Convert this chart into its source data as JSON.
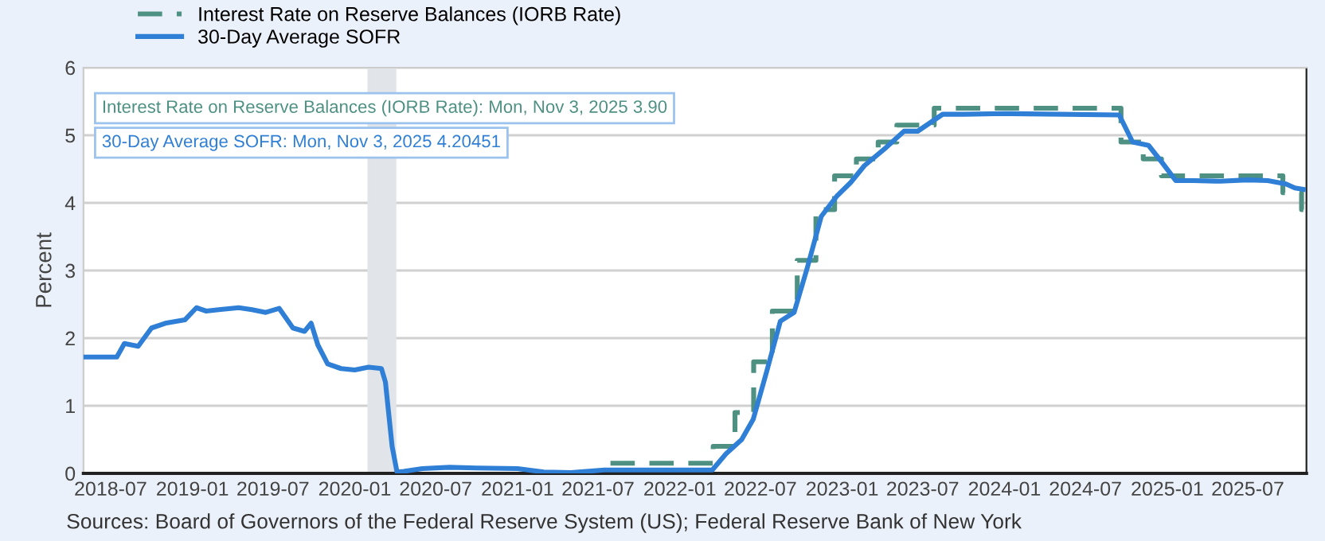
{
  "chart_data": {
    "type": "line",
    "ylabel": "Percent",
    "xlim": [
      "2018-05-01",
      "2025-11-10"
    ],
    "ylim": [
      0,
      6
    ],
    "yticks": [
      0,
      1,
      2,
      3,
      4,
      5,
      6
    ],
    "xticks": [
      "2018-07",
      "2019-01",
      "2019-07",
      "2020-01",
      "2020-07",
      "2021-01",
      "2021-07",
      "2022-01",
      "2022-07",
      "2023-01",
      "2023-07",
      "2024-01",
      "2024-07",
      "2025-01",
      "2025-07"
    ],
    "grid": "y",
    "legend": "top left",
    "bands": [
      {
        "axis": "x",
        "from": "2020-02",
        "to": "2020-04",
        "color": "#e1e4e8"
      }
    ],
    "series": [
      {
        "name": "Interest Rate on Reserve Balances (IORB Rate)",
        "type": "step",
        "line_style": "dashed",
        "color": "#4e9183",
        "x": [
          "2021-07-29",
          "2022-03-17",
          "2022-05-05",
          "2022-06-16",
          "2022-07-28",
          "2022-09-22",
          "2022-11-03",
          "2022-12-15",
          "2023-02-02",
          "2023-03-23",
          "2023-05-04",
          "2023-07-27",
          "2024-09-19",
          "2024-11-08",
          "2024-12-19",
          "2025-09-18",
          "2025-10-30",
          "2025-11-03"
        ],
        "values": [
          0.15,
          0.4,
          0.9,
          1.65,
          2.4,
          3.15,
          3.9,
          4.4,
          4.65,
          4.9,
          5.15,
          5.4,
          4.9,
          4.65,
          4.4,
          4.15,
          3.9,
          3.9
        ]
      },
      {
        "name": "30-Day Average SOFR",
        "line_style": "solid",
        "color": "#2f7fd6",
        "x": [
          "2018-05",
          "2018-07-15",
          "2018-08-01",
          "2018-09-01",
          "2018-10-01",
          "2018-11-01",
          "2018-12-15",
          "2019-01-10",
          "2019-02-01",
          "2019-03-01",
          "2019-04-15",
          "2019-05-15",
          "2019-06-15",
          "2019-07-15",
          "2019-08-15",
          "2019-09-10",
          "2019-09-25",
          "2019-10-10",
          "2019-11-01",
          "2019-12-01",
          "2020-01-01",
          "2020-02-01",
          "2020-03-01",
          "2020-03-10",
          "2020-03-25",
          "2020-04-05",
          "2020-04-20",
          "2020-06-01",
          "2020-08-01",
          "2020-10-01",
          "2021-01-01",
          "2021-03-01",
          "2021-05-01",
          "2021-07-15",
          "2022-03-15",
          "2022-04-15",
          "2022-05-20",
          "2022-06-15",
          "2022-07-15",
          "2022-08-15",
          "2022-09-15",
          "2022-10-15",
          "2022-11-15",
          "2022-12-20",
          "2023-01-20",
          "2023-02-20",
          "2023-04-10",
          "2023-05-20",
          "2023-06-20",
          "2023-08-15",
          "2023-10-01",
          "2024-01-01",
          "2024-09-15",
          "2024-10-15",
          "2024-11-20",
          "2024-12-20",
          "2025-01-20",
          "2025-03-01",
          "2025-05-01",
          "2025-07-01",
          "2025-08-15",
          "2025-09-25",
          "2025-10-15",
          "2025-11-03"
        ],
        "values": [
          1.72,
          1.72,
          1.92,
          1.88,
          2.15,
          2.22,
          2.27,
          2.45,
          2.4,
          2.42,
          2.45,
          2.42,
          2.38,
          2.44,
          2.15,
          2.1,
          2.22,
          1.9,
          1.62,
          1.55,
          1.53,
          1.57,
          1.55,
          1.35,
          0.4,
          0.02,
          0.03,
          0.07,
          0.09,
          0.08,
          0.07,
          0.02,
          0.01,
          0.05,
          0.05,
          0.29,
          0.5,
          0.8,
          1.5,
          2.25,
          2.38,
          3.05,
          3.8,
          4.1,
          4.3,
          4.55,
          4.82,
          5.06,
          5.06,
          5.31,
          5.31,
          5.32,
          5.3,
          4.9,
          4.85,
          4.6,
          4.33,
          4.33,
          4.32,
          4.34,
          4.33,
          4.28,
          4.22,
          4.2
        ]
      }
    ],
    "annotations": [
      "Interest Rate on Reserve Balances (IORB Rate): Mon, Nov 3, 2025 3.90",
      "30-Day Average SOFR: Mon, Nov 3, 2025 4.20451",
      "Sources: Board of Governors of the Federal Reserve System (US); Federal Reserve Bank of New York"
    ]
  }
}
